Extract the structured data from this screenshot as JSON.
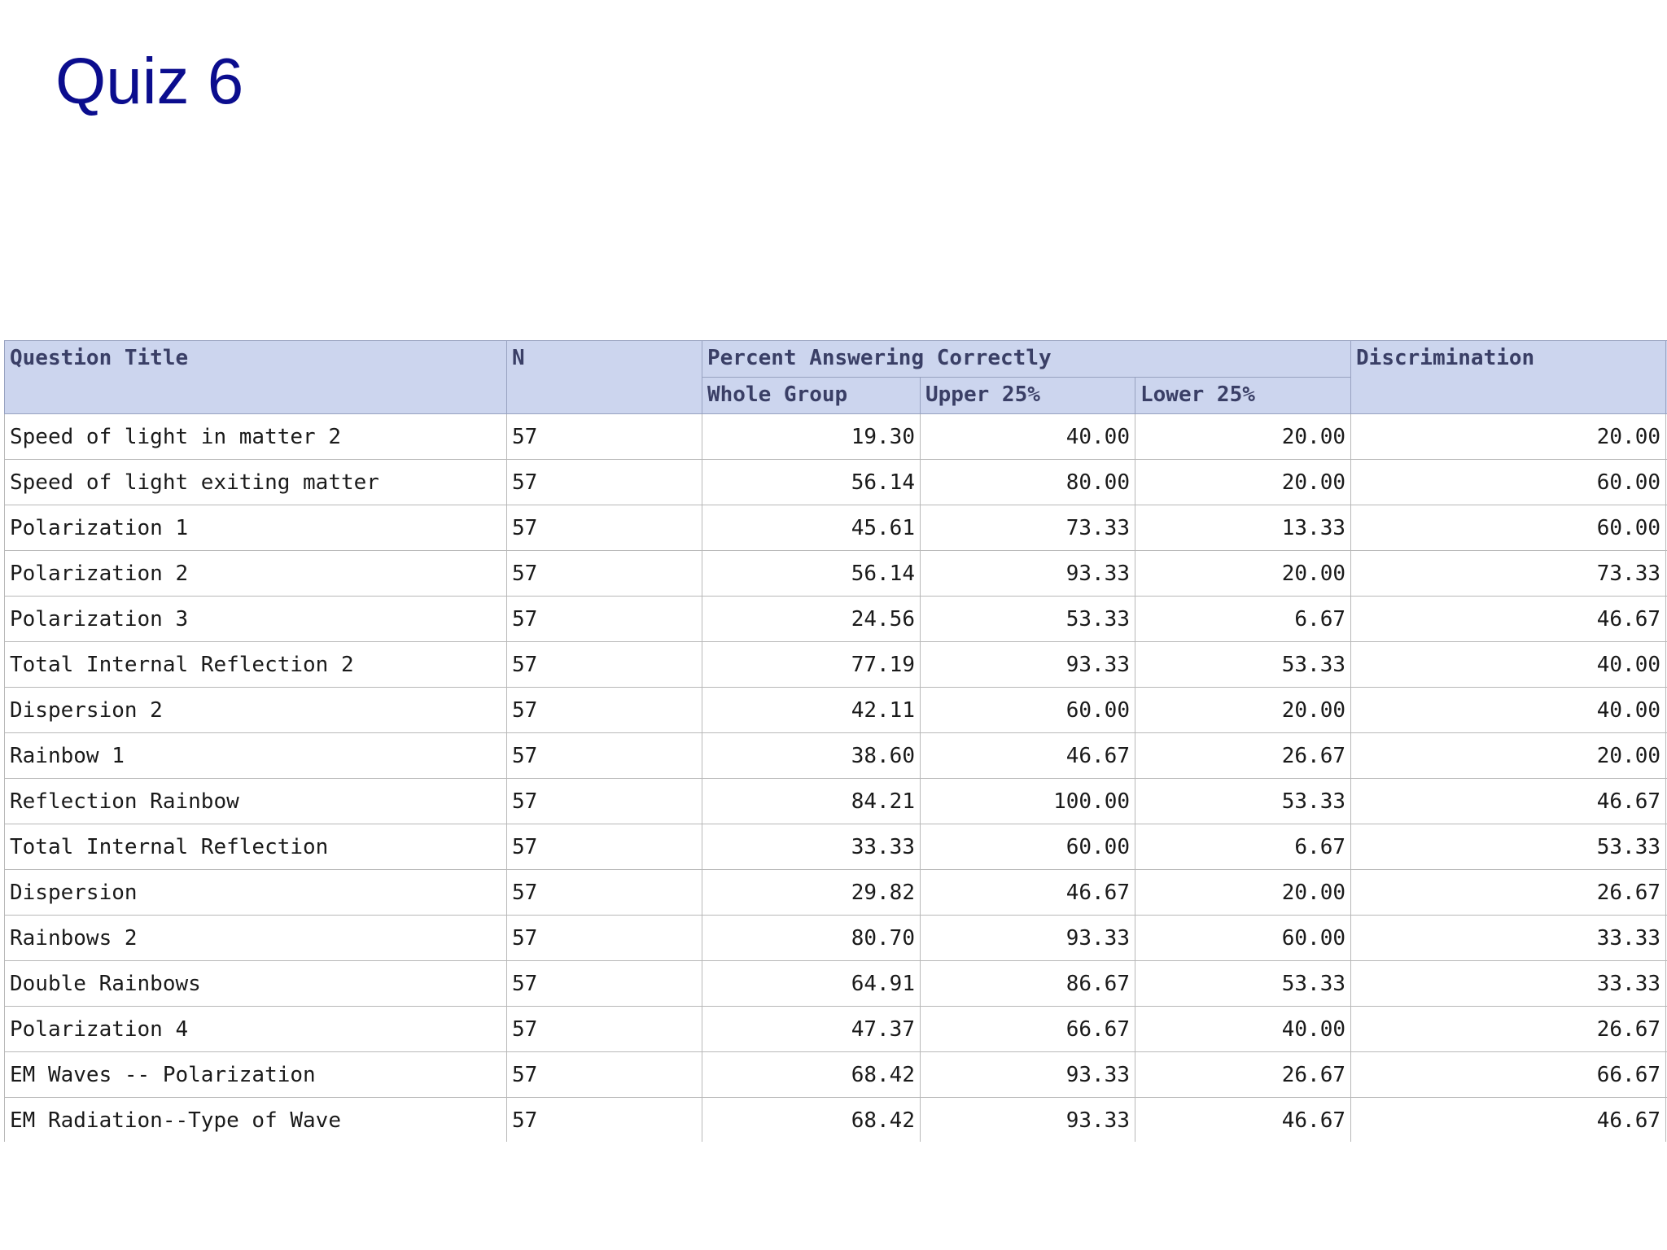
{
  "title": "Quiz 6",
  "table": {
    "headers": {
      "question_title": "Question Title",
      "n": "N",
      "percent_group": "Percent Answering Correctly",
      "whole_group": "Whole Group",
      "upper": "Upper 25%",
      "lower": "Lower 25%",
      "discrimination": "Discrimination",
      "cutoff": "N"
    },
    "rows": [
      {
        "title": "Speed of light in matter 2",
        "n": "57",
        "whole": "19.30",
        "upper": "40.00",
        "lower": "20.00",
        "disc": "20.00"
      },
      {
        "title": "Speed of light exiting matter",
        "n": "57",
        "whole": "56.14",
        "upper": "80.00",
        "lower": "20.00",
        "disc": "60.00"
      },
      {
        "title": "Polarization 1",
        "n": "57",
        "whole": "45.61",
        "upper": "73.33",
        "lower": "13.33",
        "disc": "60.00"
      },
      {
        "title": "Polarization 2",
        "n": "57",
        "whole": "56.14",
        "upper": "93.33",
        "lower": "20.00",
        "disc": "73.33"
      },
      {
        "title": "Polarization 3",
        "n": "57",
        "whole": "24.56",
        "upper": "53.33",
        "lower": "6.67",
        "disc": "46.67"
      },
      {
        "title": "Total Internal Reflection 2",
        "n": "57",
        "whole": "77.19",
        "upper": "93.33",
        "lower": "53.33",
        "disc": "40.00"
      },
      {
        "title": "Dispersion 2",
        "n": "57",
        "whole": "42.11",
        "upper": "60.00",
        "lower": "20.00",
        "disc": "40.00"
      },
      {
        "title": "Rainbow 1",
        "n": "57",
        "whole": "38.60",
        "upper": "46.67",
        "lower": "26.67",
        "disc": "20.00"
      },
      {
        "title": "Reflection Rainbow",
        "n": "57",
        "whole": "84.21",
        "upper": "100.00",
        "lower": "53.33",
        "disc": "46.67"
      },
      {
        "title": "Total Internal Reflection",
        "n": "57",
        "whole": "33.33",
        "upper": "60.00",
        "lower": "6.67",
        "disc": "53.33"
      },
      {
        "title": "Dispersion",
        "n": "57",
        "whole": "29.82",
        "upper": "46.67",
        "lower": "20.00",
        "disc": "26.67"
      },
      {
        "title": "Rainbows 2",
        "n": "57",
        "whole": "80.70",
        "upper": "93.33",
        "lower": "60.00",
        "disc": "33.33"
      },
      {
        "title": "Double Rainbows",
        "n": "57",
        "whole": "64.91",
        "upper": "86.67",
        "lower": "53.33",
        "disc": "33.33"
      },
      {
        "title": "Polarization 4",
        "n": "57",
        "whole": "47.37",
        "upper": "66.67",
        "lower": "40.00",
        "disc": "26.67"
      },
      {
        "title": "EM Waves -- Polarization",
        "n": "57",
        "whole": "68.42",
        "upper": "93.33",
        "lower": "26.67",
        "disc": "66.67"
      },
      {
        "title": "EM Radiation--Type of Wave",
        "n": "57",
        "whole": "68.42",
        "upper": "93.33",
        "lower": "46.67",
        "disc": "46.67"
      }
    ]
  }
}
